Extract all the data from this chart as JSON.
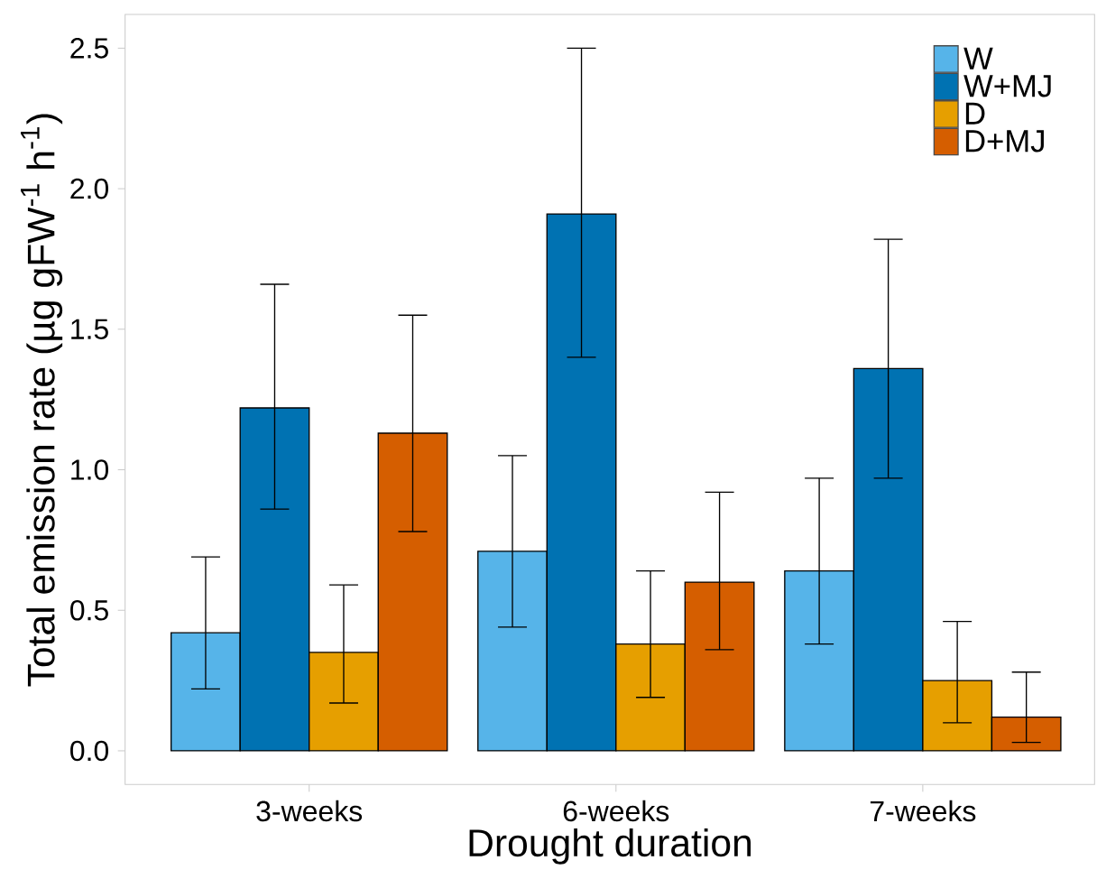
{
  "chart_data": {
    "type": "bar",
    "xlabel": "Drought duration",
    "ylabel": "Total emission rate (µg gFW$^{-1}$ h$^{-1}$)",
    "categories": [
      "3-weeks",
      "6-weeks",
      "7-weeks"
    ],
    "series": [
      {
        "name": "W",
        "color": "#56b4e9",
        "values": [
          0.42,
          0.71,
          0.64
        ],
        "errors": [
          [
            0.22,
            0.69
          ],
          [
            0.44,
            1.05
          ],
          [
            0.38,
            0.97
          ]
        ]
      },
      {
        "name": "W+MJ",
        "color": "#0072b2",
        "values": [
          1.22,
          1.91,
          1.36
        ],
        "errors": [
          [
            0.86,
            1.66
          ],
          [
            1.4,
            2.5
          ],
          [
            0.97,
            1.82
          ]
        ]
      },
      {
        "name": "D",
        "color": "#e69f00",
        "values": [
          0.35,
          0.38,
          0.25
        ],
        "errors": [
          [
            0.17,
            0.59
          ],
          [
            0.19,
            0.64
          ],
          [
            0.1,
            0.46
          ]
        ]
      },
      {
        "name": "D+MJ",
        "color": "#d55e00",
        "values": [
          1.13,
          0.6,
          0.12
        ],
        "errors": [
          [
            0.78,
            1.55
          ],
          [
            0.36,
            0.92
          ],
          [
            0.03,
            0.28
          ]
        ]
      }
    ],
    "ylim": [
      -0.12,
      2.62
    ],
    "yticks": [
      {
        "value": 0,
        "label": "0.0"
      },
      {
        "value": 0.5,
        "label": "0.5"
      },
      {
        "value": 1,
        "label": "1.0"
      },
      {
        "value": 1.5,
        "label": "1.5"
      },
      {
        "value": 2,
        "label": "2.0"
      },
      {
        "value": 2.5,
        "label": "2.5"
      }
    ],
    "legend": "top right",
    "grid": false
  }
}
